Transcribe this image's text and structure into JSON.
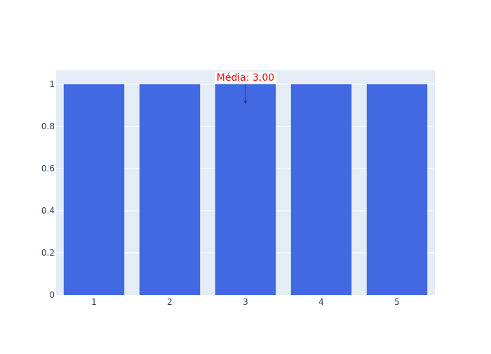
{
  "chart_data": {
    "type": "bar",
    "categories": [
      "1",
      "2",
      "3",
      "4",
      "5"
    ],
    "values": [
      1,
      1,
      1,
      1,
      1
    ],
    "ylim": [
      0,
      1.0667
    ],
    "yticks": [
      0,
      0.2,
      0.4,
      0.6,
      0.8,
      1
    ],
    "ytick_labels": [
      "0",
      "0.2",
      "0.4",
      "0.6",
      "0.8",
      "1"
    ],
    "grid": true,
    "legend": "none",
    "colors": {
      "bar": "#4169e1",
      "plot_background": "#e5ecf6",
      "gridline": "#ffffff",
      "tick_text": "#2a3f5f",
      "annotation_text": "#ff0000",
      "annotation_arrow": "#2a3f5f"
    },
    "annotation": {
      "text": "Média: 3.00",
      "x_category": "3",
      "y": 1
    }
  }
}
